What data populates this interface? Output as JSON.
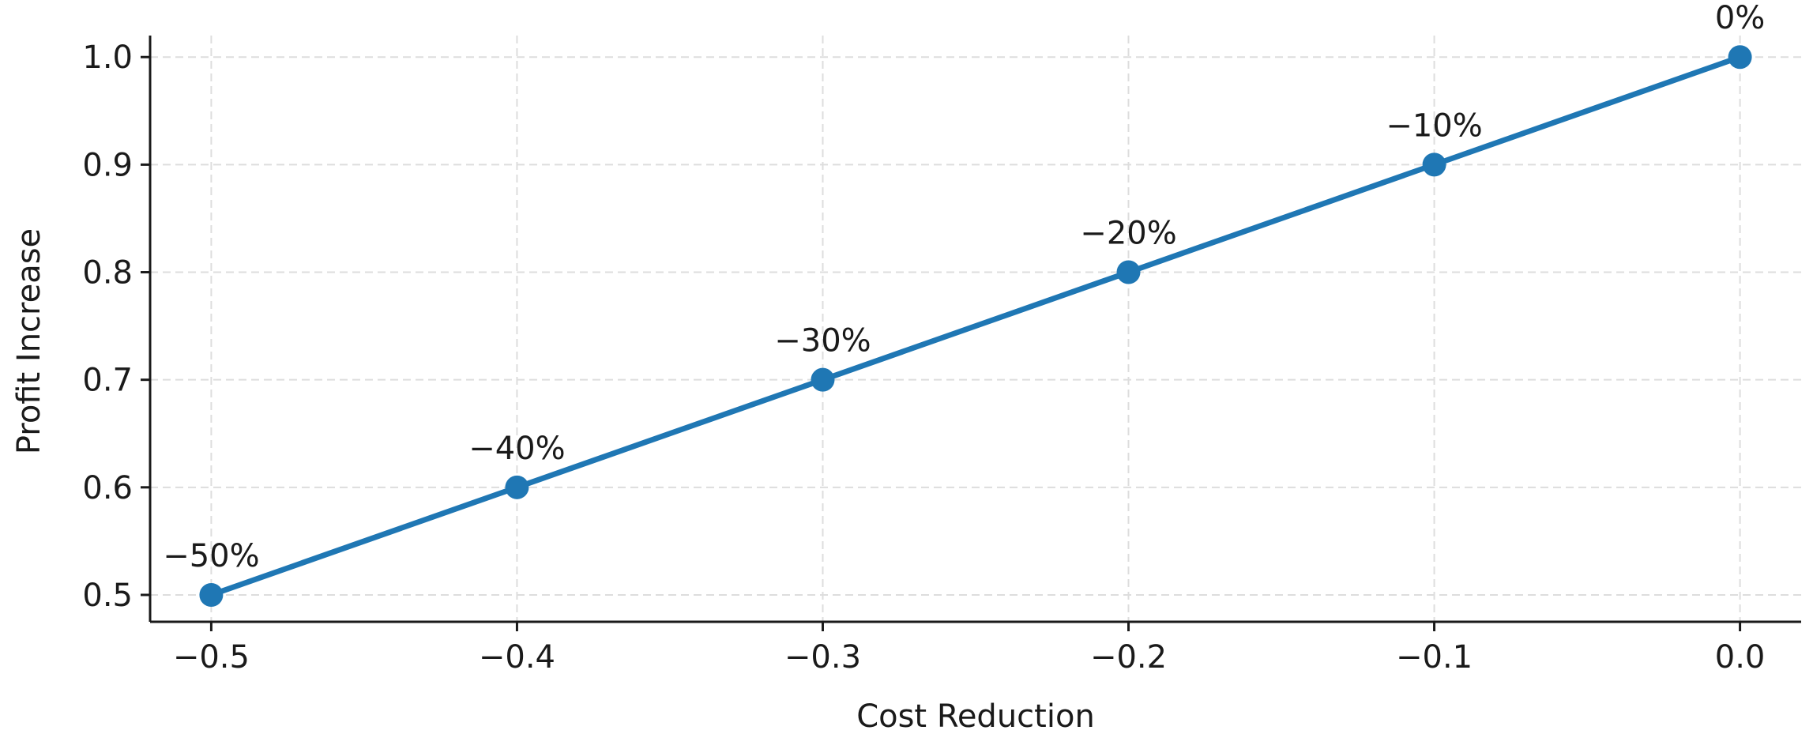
{
  "chart_data": {
    "type": "line",
    "title": "",
    "xlabel": "Cost Reduction",
    "ylabel": "Profit Increase",
    "xlim": [
      -0.52,
      0.02
    ],
    "ylim": [
      0.475,
      1.02
    ],
    "grid": true,
    "xticks": [
      -0.5,
      -0.4,
      -0.3,
      -0.2,
      -0.1,
      0.0
    ],
    "xtick_labels": [
      "−0.5",
      "−0.4",
      "−0.3",
      "−0.2",
      "−0.1",
      "0.0"
    ],
    "yticks": [
      0.5,
      0.6,
      0.7,
      0.8,
      0.9,
      1.0
    ],
    "ytick_labels": [
      "0.5",
      "0.6",
      "0.7",
      "0.8",
      "0.9",
      "1.0"
    ],
    "series": [
      {
        "x": [
          -0.5,
          -0.4,
          -0.3,
          -0.2,
          -0.1,
          0.0
        ],
        "y": [
          0.5,
          0.6,
          0.7,
          0.8,
          0.9,
          1.0
        ],
        "point_labels": [
          "−50%",
          "−40%",
          "−30%",
          "−20%",
          "−10%",
          "0%"
        ],
        "color": "#1f77b4"
      }
    ],
    "colors": {
      "line": "#1f77b4",
      "axis": "#1a1a1a",
      "grid": "#dddddd"
    }
  }
}
